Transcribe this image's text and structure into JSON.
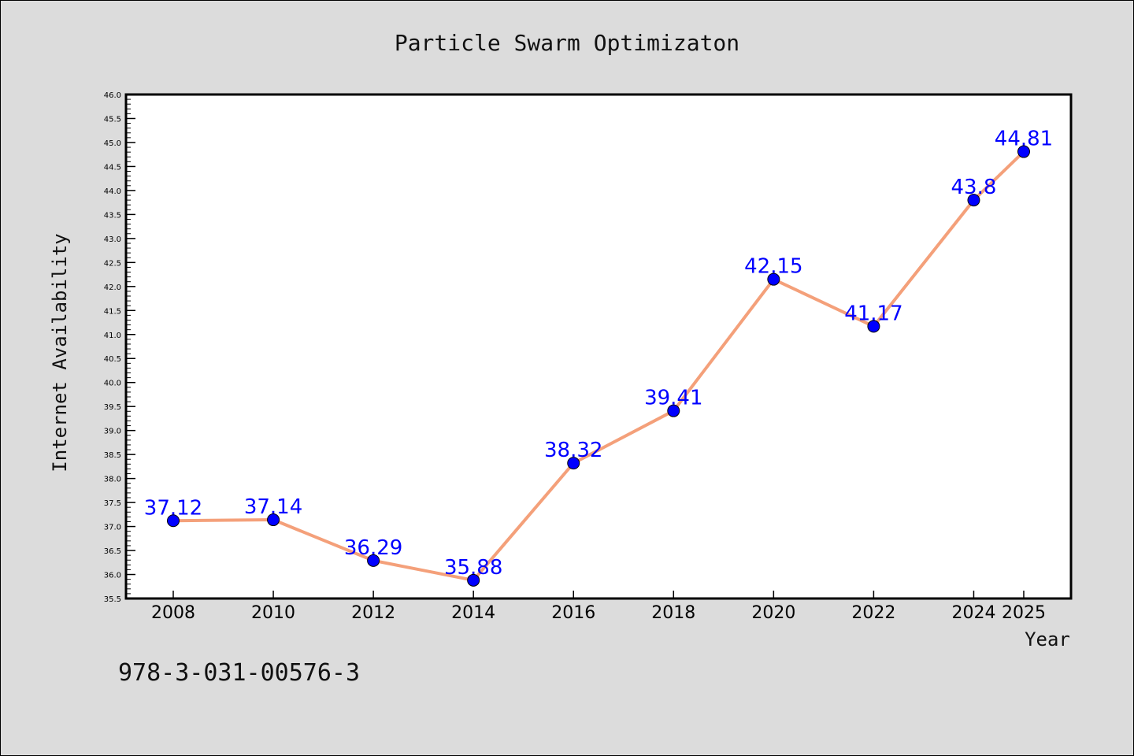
{
  "chart_data": {
    "type": "line",
    "title": "Particle Swarm Optimizaton",
    "xlabel": "Year",
    "ylabel": "Internet Availability",
    "x": [
      2008,
      2010,
      2012,
      2014,
      2016,
      2018,
      2020,
      2022,
      2024,
      2025
    ],
    "values": [
      37.12,
      37.14,
      36.29,
      35.88,
      38.32,
      39.41,
      42.15,
      41.17,
      43.8,
      44.81
    ],
    "data_labels": [
      "37.12",
      "37.14",
      "36.29",
      "35.88",
      "38.32",
      "39.41",
      "42.15",
      "41.17",
      "43.8",
      "44.81"
    ],
    "xticks": [
      "2008",
      "2010",
      "2012",
      "2014",
      "2016",
      "2018",
      "2020",
      "2022",
      "2024",
      "2025"
    ],
    "yticks": [
      "35.5",
      "36.0",
      "36.5",
      "37.0",
      "37.5",
      "38.0",
      "38.5",
      "39.0",
      "39.5",
      "40.0",
      "40.5",
      "41.0",
      "41.5",
      "42.0",
      "42.5",
      "43.0",
      "43.5",
      "44.0",
      "44.5",
      "45.0",
      "45.5",
      "46.0"
    ],
    "ylim": [
      35.5,
      46.0
    ],
    "grid": false,
    "line_color": "#f4a07a",
    "marker_color": "#0000ff",
    "label_color": "#0000ff",
    "background_color": "#dcdcdc"
  },
  "footer": {
    "isbn": "978-3-031-00576-3"
  }
}
